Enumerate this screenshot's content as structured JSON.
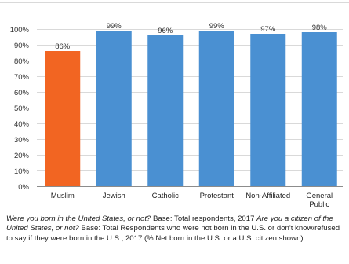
{
  "chart_data": {
    "type": "bar",
    "categories": [
      "Muslim",
      "Jewish",
      "Catholic",
      "Protestant",
      "Non-Affiliated",
      "General Public"
    ],
    "category_lines": [
      [
        "Muslim"
      ],
      [
        "Jewish"
      ],
      [
        "Catholic"
      ],
      [
        "Protestant"
      ],
      [
        "Non-Affiliated"
      ],
      [
        "General",
        "Public"
      ]
    ],
    "values": [
      86,
      99,
      96,
      99,
      97,
      98
    ],
    "value_labels": [
      "86%",
      "99%",
      "96%",
      "99%",
      "97%",
      "98%"
    ],
    "ylim": [
      0,
      100
    ],
    "yticks": [
      0,
      10,
      20,
      30,
      40,
      50,
      60,
      70,
      80,
      90,
      100
    ],
    "ytick_labels": [
      "0%",
      "10%",
      "20%",
      "30%",
      "40%",
      "50%",
      "60%",
      "70%",
      "80%",
      "90%",
      "100%"
    ],
    "grid": true,
    "colors": {
      "highlight": "#f26522",
      "default": "#4a90d2",
      "grid": "#d9d9d9",
      "axis": "#8c8c8c"
    },
    "highlight_index": 0
  },
  "caption": {
    "q1": "Were you born in the United States, or not?",
    "b1": " Base: Total respondents, 2017 ",
    "q2": "Are you a citizen of the United States, or not?",
    "b2": " Base: Total Respondents who were not born in the U.S. or don't know/refused to say if they were born in the U.S., 2017 (% Net born in the U.S. or a U.S. citizen shown)"
  }
}
